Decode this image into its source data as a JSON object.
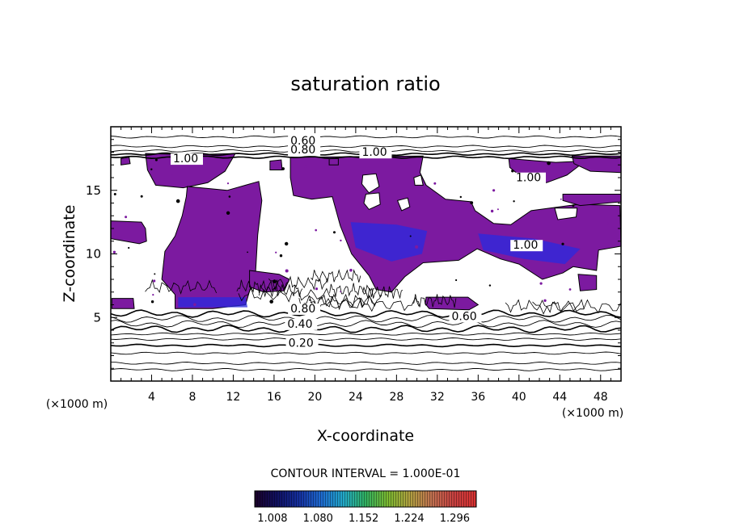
{
  "chart_data": {
    "type": "heatmap",
    "title": "saturation ratio",
    "xlabel": "X-coordinate",
    "ylabel": "Z-coordinate",
    "x_unit_label": "(×1000 m)",
    "z_unit_label": "(×1000 m)",
    "xlim": [
      0,
      50
    ],
    "ylim": [
      0,
      20
    ],
    "x_ticks": [
      "4",
      "8",
      "12",
      "16",
      "20",
      "24",
      "28",
      "32",
      "36",
      "40",
      "44",
      "48"
    ],
    "y_ticks": [
      "5",
      "10",
      "15"
    ],
    "x_tick_values": [
      4,
      8,
      12,
      16,
      20,
      24,
      28,
      32,
      36,
      40,
      44,
      48
    ],
    "y_tick_values": [
      5,
      10,
      15
    ],
    "contour_interval_text": "CONTOUR INTERVAL = 1.000E-01",
    "contour_labels": [
      {
        "text": "0.60",
        "x": 17.6,
        "z": 18.6
      },
      {
        "text": "0.80",
        "x": 17.6,
        "z": 17.9
      },
      {
        "text": "1.00",
        "x": 6.1,
        "z": 17.2
      },
      {
        "text": "1.00",
        "x": 24.6,
        "z": 17.7
      },
      {
        "text": "1.00",
        "x": 39.7,
        "z": 15.7
      },
      {
        "text": "1.00",
        "x": 39.4,
        "z": 10.4
      },
      {
        "text": "0.80",
        "x": 17.6,
        "z": 5.4
      },
      {
        "text": "0.60",
        "x": 33.4,
        "z": 4.8
      },
      {
        "text": "0.40",
        "x": 17.3,
        "z": 4.2
      },
      {
        "text": "0.20",
        "x": 17.4,
        "z": 2.7
      }
    ],
    "contour_levels_z": [
      0.9,
      1.4,
      2.2,
      2.8,
      3.3,
      3.7,
      4.1,
      4.5,
      4.9,
      5.3,
      17.6,
      17.85,
      18.1,
      18.45,
      19.2
    ],
    "colorbar": {
      "tick_labels": [
        "1.008",
        "1.080",
        "1.152",
        "1.224",
        "1.296"
      ],
      "tick_values": [
        1.008,
        1.08,
        1.152,
        1.224,
        1.296
      ],
      "range": [
        0.98,
        1.33
      ],
      "colors": [
        "#1a0028",
        "#101060",
        "#1530a0",
        "#1e6ad0",
        "#22a8c8",
        "#30b060",
        "#7ab830",
        "#b0a040",
        "#c07050",
        "#c84040",
        "#d83030"
      ]
    },
    "supersaturated_fill_color": "#7c1aa0",
    "supersaturated_edge_color": "#2a2ae0",
    "supersaturated_regions": [
      {
        "name": "upper-west-cloud",
        "points": [
          [
            3.4,
            17.9
          ],
          [
            8.0,
            17.8
          ],
          [
            12.2,
            17.9
          ],
          [
            11.2,
            16.5
          ],
          [
            9.5,
            15.6
          ],
          [
            7.1,
            15.2
          ],
          [
            4.4,
            15.4
          ],
          [
            3.6,
            16.6
          ]
        ]
      },
      {
        "name": "west-column",
        "points": [
          [
            7.5,
            15.3
          ],
          [
            11.4,
            15.0
          ],
          [
            13.2,
            15.4
          ],
          [
            14.5,
            15.7
          ],
          [
            14.8,
            14.2
          ],
          [
            14.4,
            11.5
          ],
          [
            14.2,
            8.7
          ],
          [
            13.2,
            6.0
          ],
          [
            10.0,
            5.7
          ],
          [
            6.3,
            5.7
          ],
          [
            6.3,
            6.8
          ],
          [
            5.0,
            8.0
          ],
          [
            5.3,
            10.2
          ],
          [
            6.3,
            11.4
          ],
          [
            7.0,
            13.0
          ],
          [
            7.4,
            14.5
          ]
        ]
      },
      {
        "name": "central-cloud",
        "points": [
          [
            17.6,
            17.6
          ],
          [
            30.6,
            17.7
          ],
          [
            30.3,
            16.4
          ],
          [
            30.9,
            15.4
          ],
          [
            32.8,
            14.3
          ],
          [
            35.3,
            14.1
          ],
          [
            35.7,
            13.4
          ],
          [
            37.5,
            12.4
          ],
          [
            39.2,
            12.3
          ],
          [
            41.2,
            13.4
          ],
          [
            45.8,
            13.9
          ],
          [
            49.9,
            13.8
          ],
          [
            50.0,
            10.6
          ],
          [
            47.8,
            10.3
          ],
          [
            47.6,
            8.7
          ],
          [
            45.3,
            9.0
          ],
          [
            44.3,
            8.5
          ],
          [
            42.3,
            8.0
          ],
          [
            40.0,
            9.2
          ],
          [
            38.2,
            9.6
          ],
          [
            35.9,
            10.4
          ],
          [
            34.1,
            9.5
          ],
          [
            30.6,
            9.3
          ],
          [
            28.8,
            8.2
          ],
          [
            27.5,
            7.0
          ],
          [
            26.0,
            7.2
          ],
          [
            25.3,
            8.3
          ],
          [
            23.6,
            10.0
          ],
          [
            22.5,
            12.2
          ],
          [
            21.7,
            14.5
          ],
          [
            19.7,
            14.3
          ],
          [
            17.9,
            14.6
          ],
          [
            17.6,
            16.0
          ]
        ]
      },
      {
        "name": "right-top-streak",
        "points": [
          [
            39.0,
            17.5
          ],
          [
            42.0,
            17.3
          ],
          [
            43.6,
            17.2
          ],
          [
            46.5,
            17.3
          ],
          [
            44.7,
            16.2
          ],
          [
            42.7,
            15.6
          ],
          [
            40.6,
            15.8
          ],
          [
            39.1,
            16.8
          ]
        ]
      },
      {
        "name": "right-mid-band",
        "points": [
          [
            44.3,
            14.7
          ],
          [
            50.0,
            14.7
          ],
          [
            50.0,
            14.1
          ],
          [
            46.0,
            13.8
          ],
          [
            44.3,
            14.2
          ]
        ]
      },
      {
        "name": "upper-east-patch",
        "points": [
          [
            45.2,
            17.7
          ],
          [
            50.0,
            17.7
          ],
          [
            50.0,
            16.4
          ],
          [
            47.0,
            16.5
          ],
          [
            45.4,
            17.1
          ]
        ]
      },
      {
        "name": "west-edge-band",
        "points": [
          [
            0.0,
            12.6
          ],
          [
            3.0,
            12.5
          ],
          [
            3.4,
            12.0
          ],
          [
            3.5,
            11.0
          ],
          [
            2.8,
            10.8
          ],
          [
            0.0,
            11.2
          ]
        ]
      },
      {
        "name": "low-left-patch",
        "points": [
          [
            0.1,
            6.5
          ],
          [
            2.2,
            6.5
          ],
          [
            2.3,
            5.7
          ],
          [
            0.1,
            5.7
          ]
        ]
      },
      {
        "name": "mid-low-patch",
        "points": [
          [
            13.6,
            8.7
          ],
          [
            16.5,
            8.4
          ],
          [
            17.5,
            8.0
          ],
          [
            17.0,
            7.1
          ],
          [
            15.0,
            7.0
          ],
          [
            13.6,
            7.4
          ]
        ]
      },
      {
        "name": "central-low-patch",
        "points": [
          [
            30.9,
            6.6
          ],
          [
            35.0,
            6.6
          ],
          [
            36.0,
            6.0
          ],
          [
            35.1,
            5.6
          ],
          [
            31.2,
            5.7
          ],
          [
            30.8,
            6.1
          ]
        ]
      },
      {
        "name": "low-right-patch",
        "points": [
          [
            45.8,
            8.4
          ],
          [
            47.6,
            8.3
          ],
          [
            47.6,
            7.2
          ],
          [
            46.0,
            7.1
          ]
        ]
      },
      {
        "name": "top-small-patch",
        "points": [
          [
            1.0,
            17.5
          ],
          [
            1.8,
            17.6
          ],
          [
            1.9,
            17.1
          ],
          [
            1.0,
            17.0
          ]
        ]
      },
      {
        "name": "x16-top-patch",
        "points": [
          [
            15.6,
            17.3
          ],
          [
            16.7,
            17.4
          ],
          [
            16.8,
            16.6
          ],
          [
            15.6,
            16.6
          ]
        ]
      },
      {
        "name": "x22-top-patch",
        "points": [
          [
            21.4,
            17.5
          ],
          [
            22.3,
            17.5
          ],
          [
            22.3,
            17.0
          ],
          [
            21.4,
            17.0
          ]
        ]
      }
    ],
    "clear_holes": [
      {
        "name": "hole-a",
        "points": [
          [
            24.7,
            16.2
          ],
          [
            26.0,
            16.3
          ],
          [
            26.3,
            15.3
          ],
          [
            25.3,
            14.8
          ],
          [
            24.6,
            15.5
          ]
        ]
      },
      {
        "name": "hole-b",
        "points": [
          [
            25.0,
            14.7
          ],
          [
            26.3,
            14.8
          ],
          [
            26.4,
            13.9
          ],
          [
            25.3,
            13.5
          ],
          [
            24.8,
            14.0
          ]
        ]
      },
      {
        "name": "hole-c",
        "points": [
          [
            29.7,
            16.0
          ],
          [
            30.4,
            16.2
          ],
          [
            30.6,
            15.4
          ],
          [
            29.8,
            15.4
          ]
        ]
      },
      {
        "name": "hole-d",
        "points": [
          [
            28.1,
            14.2
          ],
          [
            29.1,
            14.4
          ],
          [
            29.3,
            13.7
          ],
          [
            28.5,
            13.4
          ]
        ]
      },
      {
        "name": "hole-e",
        "points": [
          [
            43.5,
            13.6
          ],
          [
            45.7,
            13.6
          ],
          [
            45.6,
            12.9
          ],
          [
            43.8,
            12.7
          ]
        ]
      }
    ]
  }
}
